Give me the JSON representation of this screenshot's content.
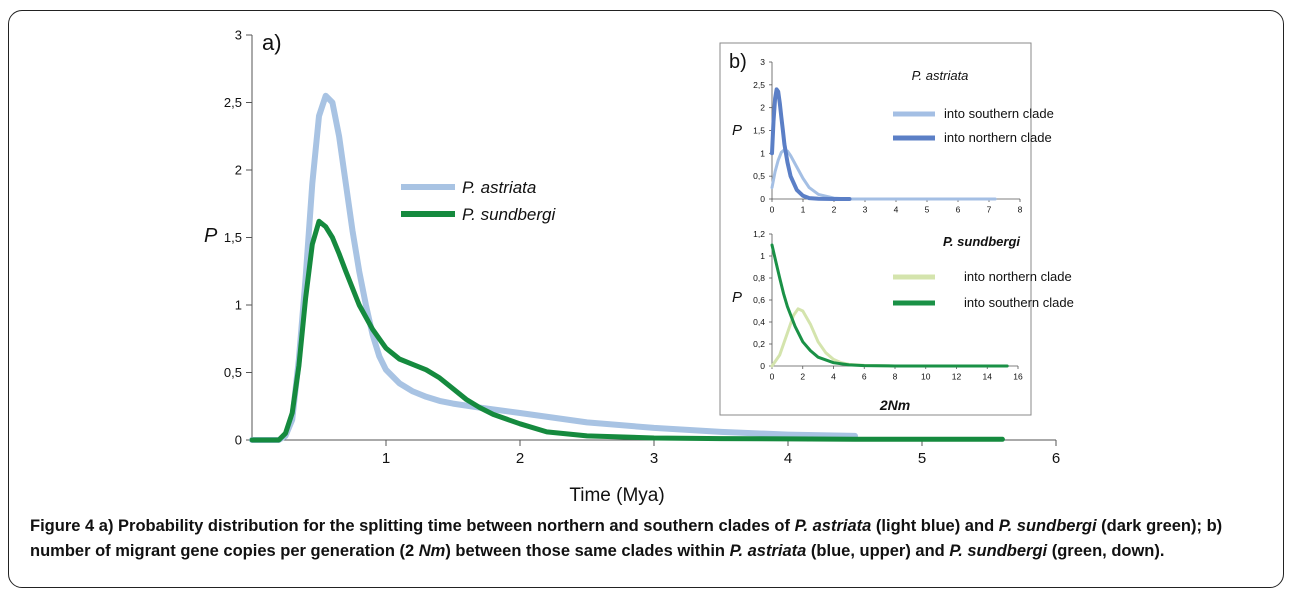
{
  "figure": {
    "panel_a_label": "a)",
    "panel_b_label": "b)",
    "caption_parts": [
      {
        "text": "Figure 4",
        "bold": true,
        "italic": false
      },
      {
        "text": " a) Probability distribution for the splitting time between northern and southern clades of ",
        "bold": false,
        "italic": false
      },
      {
        "text": "P. astriata",
        "bold": false,
        "italic": true
      },
      {
        "text": " (light blue) and ",
        "bold": false,
        "italic": false
      },
      {
        "text": "P. sundbergi",
        "bold": false,
        "italic": true
      },
      {
        "text": " (dark green); b) number of migrant gene copies per generation (2 ",
        "bold": false,
        "italic": false
      },
      {
        "text": "Nm",
        "bold": false,
        "italic": true
      },
      {
        "text": ") between those same clades within ",
        "bold": false,
        "italic": false
      },
      {
        "text": "P. astriata",
        "bold": false,
        "italic": true
      },
      {
        "text": " (blue, upper) and ",
        "bold": false,
        "italic": false
      },
      {
        "text": "P. sundbergi",
        "bold": false,
        "italic": true
      },
      {
        "text": " (green, down).",
        "bold": false,
        "italic": false
      }
    ]
  },
  "chart_data": [
    {
      "panel": "a",
      "type": "line",
      "xlabel": "Time (Mya)",
      "ylabel": "P",
      "xlim": [
        0,
        6
      ],
      "ylim": [
        0,
        3
      ],
      "x_ticks": [
        "1",
        "2",
        "3",
        "4",
        "5",
        "6"
      ],
      "y_ticks": [
        "0",
        "0,5",
        "1",
        "1,5",
        "2",
        "2,5",
        "3"
      ],
      "legend_position": "center",
      "series": [
        {
          "name": "P. astriata",
          "color": "#a8c3e3",
          "width": 6,
          "x": [
            0,
            0.2,
            0.25,
            0.3,
            0.35,
            0.4,
            0.45,
            0.5,
            0.55,
            0.6,
            0.65,
            0.7,
            0.75,
            0.8,
            0.85,
            0.9,
            0.95,
            1.0,
            1.1,
            1.2,
            1.3,
            1.4,
            1.5,
            1.7,
            2.0,
            2.5,
            3.0,
            3.5,
            4.0,
            4.5
          ],
          "y": [
            0,
            0,
            0.03,
            0.15,
            0.6,
            1.2,
            1.9,
            2.4,
            2.55,
            2.5,
            2.25,
            1.9,
            1.55,
            1.25,
            1.0,
            0.78,
            0.62,
            0.52,
            0.42,
            0.36,
            0.32,
            0.29,
            0.27,
            0.24,
            0.2,
            0.13,
            0.09,
            0.06,
            0.04,
            0.03
          ]
        },
        {
          "name": "P. sundbergi",
          "color": "#158a3e",
          "width": 5,
          "x": [
            0,
            0.2,
            0.25,
            0.3,
            0.35,
            0.4,
            0.45,
            0.5,
            0.55,
            0.6,
            0.65,
            0.7,
            0.8,
            0.9,
            1.0,
            1.1,
            1.2,
            1.3,
            1.4,
            1.5,
            1.6,
            1.7,
            1.8,
            2.0,
            2.2,
            2.5,
            3.0,
            3.5,
            4.0,
            4.5,
            5.0,
            5.6
          ],
          "y": [
            0,
            0,
            0.05,
            0.2,
            0.55,
            1.05,
            1.45,
            1.62,
            1.58,
            1.5,
            1.38,
            1.25,
            1.0,
            0.82,
            0.68,
            0.6,
            0.56,
            0.52,
            0.46,
            0.38,
            0.3,
            0.24,
            0.19,
            0.12,
            0.06,
            0.03,
            0.015,
            0.01,
            0.008,
            0.006,
            0.005,
            0.005
          ]
        }
      ]
    },
    {
      "panel": "b-upper",
      "type": "line",
      "title": "P. astriata",
      "ylabel": "P",
      "xlim": [
        0,
        8
      ],
      "ylim": [
        0,
        3
      ],
      "x_ticks": [
        "0",
        "1",
        "2",
        "3",
        "4",
        "5",
        "6",
        "7",
        "8"
      ],
      "y_ticks": [
        "0",
        "0,5",
        "1",
        "1,5",
        "2",
        "2,5",
        "3"
      ],
      "series": [
        {
          "name": "into southern clade",
          "color": "#a4bfe4",
          "width": 3,
          "x": [
            0,
            0.1,
            0.2,
            0.3,
            0.4,
            0.5,
            0.6,
            0.8,
            1.0,
            1.2,
            1.5,
            2.0,
            2.5,
            3,
            4,
            5,
            6,
            7.2
          ],
          "y": [
            0.25,
            0.6,
            0.85,
            1.02,
            1.08,
            1.05,
            0.95,
            0.7,
            0.45,
            0.25,
            0.1,
            0.02,
            0,
            0,
            0,
            0,
            0,
            0
          ]
        },
        {
          "name": "into northern clade",
          "color": "#5b7fc6",
          "width": 4,
          "x": [
            0,
            0.05,
            0.1,
            0.15,
            0.2,
            0.25,
            0.3,
            0.35,
            0.4,
            0.5,
            0.6,
            0.8,
            1.0,
            1.2,
            1.5,
            2.0,
            2.5
          ],
          "y": [
            1.0,
            1.7,
            2.2,
            2.4,
            2.35,
            2.1,
            1.8,
            1.5,
            1.2,
            0.8,
            0.5,
            0.2,
            0.07,
            0.02,
            0.005,
            0,
            0
          ]
        }
      ]
    },
    {
      "panel": "b-lower",
      "type": "line",
      "title": "P. sundbergi",
      "xlabel": "2Nm",
      "ylabel": "P",
      "xlim": [
        0,
        16
      ],
      "ylim": [
        0,
        1.2
      ],
      "x_ticks": [
        "0",
        "2",
        "4",
        "6",
        "8",
        "10",
        "12",
        "14",
        "16"
      ],
      "y_ticks": [
        "0",
        "0,2",
        "0,4",
        "0,6",
        "0,8",
        "1",
        "1,2"
      ],
      "series": [
        {
          "name": "into northern clade",
          "color": "#d4e4ad",
          "width": 3,
          "x": [
            0,
            0.5,
            1.0,
            1.4,
            1.7,
            2.0,
            2.5,
            3.0,
            3.5,
            4.0,
            4.5,
            5.0,
            6.0,
            8.0,
            10,
            12,
            13.5
          ],
          "y": [
            0,
            0.1,
            0.3,
            0.46,
            0.52,
            0.5,
            0.38,
            0.22,
            0.12,
            0.06,
            0.03,
            0.015,
            0.005,
            0,
            0,
            0,
            0
          ]
        },
        {
          "name": "into southern clade",
          "color": "#1a9146",
          "width": 3,
          "x": [
            0,
            0.25,
            0.5,
            0.75,
            1.0,
            1.5,
            2.0,
            2.5,
            3.0,
            4.0,
            5.0,
            6.0,
            8.0,
            10,
            12,
            13.5,
            14.5,
            15.3
          ],
          "y": [
            1.1,
            0.95,
            0.8,
            0.66,
            0.54,
            0.36,
            0.22,
            0.14,
            0.08,
            0.03,
            0.01,
            0.004,
            0,
            0,
            0,
            0,
            0,
            0
          ]
        }
      ]
    }
  ]
}
